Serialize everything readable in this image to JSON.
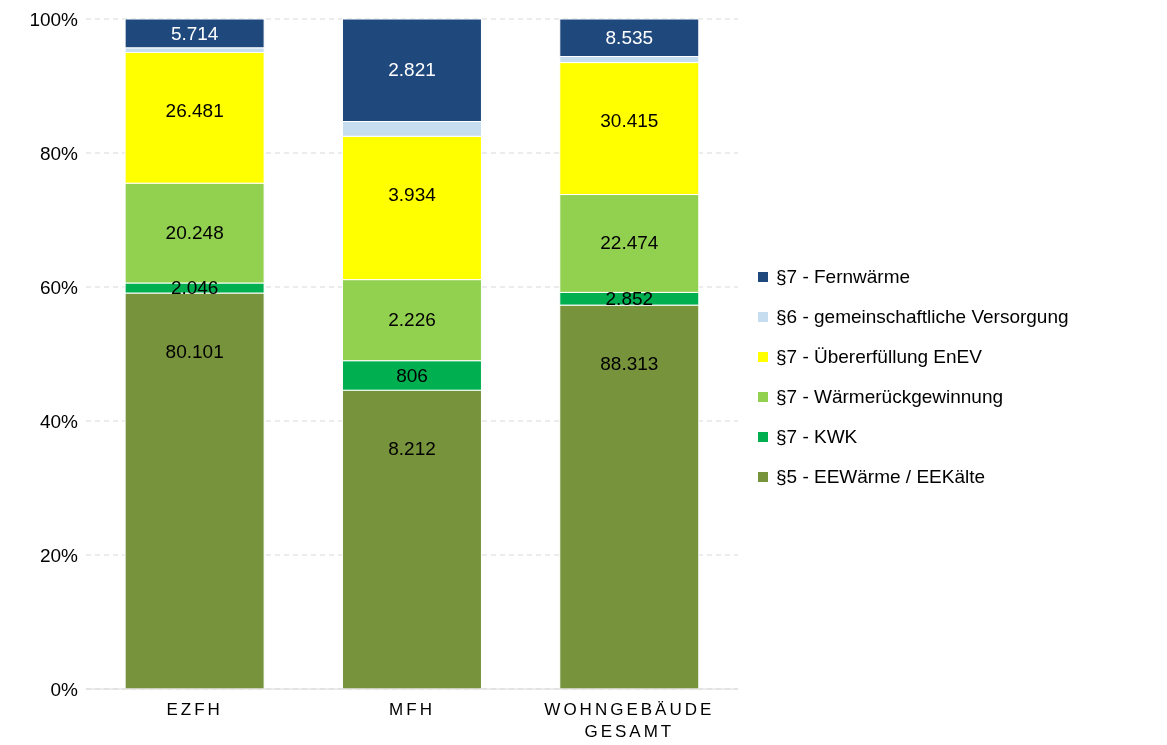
{
  "chart_data": {
    "type": "bar",
    "stacked": true,
    "categories": [
      "EZFH",
      "MFH",
      "WOHNGEBÄUDE GESAMT"
    ],
    "series": [
      {
        "name": "§5 - EEWärme / EEKälte",
        "color": "#77933c",
        "values": [
          59.1,
          44.6,
          57.3
        ]
      },
      {
        "name": "§7 - KWK",
        "color": "#00b050",
        "values": [
          1.5,
          4.4,
          1.9
        ]
      },
      {
        "name": "§7 - Wärmerückgewinnung",
        "color": "#92d050",
        "values": [
          14.9,
          12.1,
          14.6
        ]
      },
      {
        "name": "§7 - Übererfüllung EnEV",
        "color": "#ffff00",
        "values": [
          19.5,
          21.4,
          19.7
        ]
      },
      {
        "name": "§6 - gemeinschaftliche Versorgung",
        "color": "#c6dcef",
        "values": [
          0.7,
          2.2,
          0.9
        ]
      },
      {
        "name": "§7 - Fernwärme",
        "color": "#1f497d",
        "values": [
          4.3,
          15.3,
          5.6
        ]
      }
    ],
    "annotations": [
      {
        "text": "80.101",
        "x": "EZFH",
        "y": 59.1
      },
      {
        "text": "2.046",
        "x": "EZFH",
        "y": 60.6
      },
      {
        "text": "20.248",
        "x": "EZFH",
        "y": 75.5
      },
      {
        "text": "26.481",
        "x": "EZFH",
        "y": 95.0
      },
      {
        "text": "5.714",
        "x": "EZFH",
        "y": 100
      },
      {
        "text": "8.212",
        "x": "MFH",
        "y": 44.6
      },
      {
        "text": "806",
        "x": "MFH",
        "y": 49.0
      },
      {
        "text": "2.226",
        "x": "MFH",
        "y": 61.1
      },
      {
        "text": "3.934",
        "x": "MFH",
        "y": 82.5
      },
      {
        "text": "2.821",
        "x": "MFH",
        "y": 100
      },
      {
        "text": "88.313",
        "x": "WOHNGEBÄUDE GESAMT",
        "y": 57.3
      },
      {
        "text": "2.852",
        "x": "WOHNGEBÄUDE GESAMT",
        "y": 59.2
      },
      {
        "text": "22.474",
        "x": "WOHNGEBÄUDE GESAMT",
        "y": 73.8
      },
      {
        "text": "30.415",
        "x": "WOHNGEBÄUDE GESAMT",
        "y": 93.5
      },
      {
        "text": "8.535",
        "x": "WOHNGEBÄUDE GESAMT",
        "y": 100
      }
    ],
    "ylim": [
      0,
      100
    ],
    "yticks": [
      {
        "value": 0,
        "label": "0%"
      },
      {
        "value": 20,
        "label": "20%"
      },
      {
        "value": 40,
        "label": "40%"
      },
      {
        "value": 60,
        "label": "60%"
      },
      {
        "value": 80,
        "label": "80%"
      },
      {
        "value": 100,
        "label": "100%"
      }
    ],
    "grid": "y",
    "legend": "right"
  }
}
